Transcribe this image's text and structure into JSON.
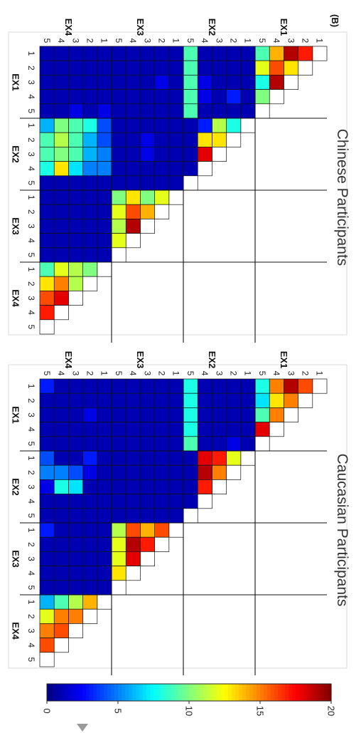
{
  "panel_label": "(B)",
  "chart_data": [
    {
      "type": "heatmap",
      "title": "Chinese Participants",
      "group_labels": [
        "EX1",
        "EX2",
        "EX3",
        "EX4"
      ],
      "item_labels": [
        "1",
        "2",
        "3",
        "4",
        "5"
      ],
      "matrix_shape": "lower-triangle",
      "values": [
        [
          0
        ],
        [
          17,
          0
        ],
        [
          19,
          13,
          0
        ],
        [
          14,
          16,
          19,
          0
        ],
        [
          9,
          12,
          8,
          10,
          0
        ],
        [
          1,
          1,
          1,
          1,
          1,
          0
        ],
        [
          1,
          1,
          1,
          3,
          1,
          8,
          0
        ],
        [
          1,
          1,
          1,
          1,
          1,
          11,
          13,
          0
        ],
        [
          1,
          1,
          2,
          2,
          1,
          3,
          13,
          18,
          0
        ],
        [
          9,
          9,
          9,
          9,
          9,
          1,
          1,
          1,
          1,
          0
        ],
        [
          1,
          1,
          1,
          1,
          1,
          1,
          1,
          1,
          1,
          1,
          0
        ],
        [
          1,
          1,
          2,
          1,
          1,
          1,
          1,
          1,
          1,
          1,
          12,
          0
        ],
        [
          1,
          1,
          1,
          1,
          1,
          1,
          2,
          2,
          1,
          1,
          10,
          14,
          0
        ],
        [
          1,
          1,
          1,
          1,
          1,
          1,
          1,
          1,
          1,
          1,
          13,
          16,
          19,
          0
        ],
        [
          1,
          1,
          1,
          1,
          1,
          1,
          1,
          1,
          1,
          1,
          10,
          12,
          11,
          12,
          0
        ],
        [
          1,
          1,
          1,
          1,
          2,
          4,
          4,
          5,
          5,
          1,
          1,
          1,
          1,
          1,
          1,
          0
        ],
        [
          1,
          1,
          1,
          1,
          1,
          8,
          6,
          6,
          5,
          1,
          1,
          1,
          1,
          1,
          1,
          10,
          0
        ],
        [
          1,
          1,
          1,
          1,
          2,
          9,
          9,
          9,
          7,
          1,
          1,
          1,
          1,
          1,
          1,
          11,
          11,
          0
        ],
        [
          1,
          1,
          1,
          1,
          1,
          10,
          11,
          10,
          13,
          1,
          1,
          1,
          1,
          1,
          1,
          12,
          15,
          18,
          0
        ],
        [
          1,
          1,
          1,
          1,
          1,
          6,
          9,
          9,
          8,
          1,
          1,
          1,
          1,
          1,
          1,
          9,
          13,
          16,
          17,
          0
        ]
      ],
      "colorbar": {
        "min": 0,
        "max": 20,
        "ticks": [
          0,
          5,
          10,
          15,
          20
        ],
        "colormap": "jet"
      }
    },
    {
      "type": "heatmap",
      "title": "Caucasian Participants",
      "group_labels": [
        "EX1",
        "EX2",
        "EX3",
        "EX4"
      ],
      "item_labels": [
        "1",
        "2",
        "3",
        "4",
        "5"
      ],
      "matrix_shape": "lower-triangle",
      "values": [
        [
          0
        ],
        [
          16,
          0
        ],
        [
          19,
          15,
          0
        ],
        [
          15,
          13,
          15,
          0
        ],
        [
          8,
          7,
          9,
          18,
          0
        ],
        [
          1,
          1,
          1,
          1,
          1,
          0
        ],
        [
          1,
          1,
          1,
          1,
          2,
          12,
          0
        ],
        [
          1,
          1,
          1,
          1,
          1,
          17,
          15,
          0
        ],
        [
          1,
          1,
          1,
          1,
          1,
          18,
          19,
          17,
          0
        ],
        [
          8,
          8,
          8,
          8,
          9,
          1,
          1,
          1,
          1,
          0
        ],
        [
          1,
          1,
          1,
          1,
          1,
          1,
          1,
          1,
          1,
          1,
          0
        ],
        [
          1,
          1,
          1,
          1,
          1,
          1,
          1,
          1,
          1,
          1,
          16,
          0
        ],
        [
          1,
          1,
          1,
          1,
          1,
          1,
          1,
          1,
          1,
          1,
          14,
          17,
          0
        ],
        [
          1,
          1,
          1,
          1,
          1,
          1,
          1,
          1,
          1,
          1,
          16,
          19,
          18,
          0
        ],
        [
          1,
          1,
          1,
          1,
          1,
          1,
          1,
          1,
          1,
          1,
          11,
          12,
          12,
          13,
          0
        ],
        [
          1,
          1,
          1,
          1,
          1,
          1,
          1,
          1,
          1,
          1,
          1,
          1,
          1,
          1,
          1,
          0
        ],
        [
          1,
          1,
          2,
          1,
          1,
          3,
          2,
          1,
          1,
          1,
          1,
          1,
          1,
          1,
          1,
          14,
          0
        ],
        [
          1,
          1,
          1,
          1,
          1,
          1,
          4,
          7,
          1,
          1,
          1,
          1,
          1,
          1,
          1,
          11,
          15,
          0
        ],
        [
          1,
          1,
          1,
          1,
          1,
          1,
          5,
          8,
          1,
          1,
          1,
          1,
          1,
          1,
          1,
          9,
          15,
          16,
          0
        ],
        [
          3,
          1,
          1,
          1,
          1,
          4,
          5,
          2,
          1,
          1,
          3,
          1,
          1,
          1,
          1,
          6,
          12,
          15,
          16,
          0
        ]
      ],
      "colorbar": {
        "min": 0,
        "max": 20,
        "ticks": [
          0,
          5,
          10,
          15,
          20
        ],
        "colormap": "jet"
      }
    }
  ]
}
